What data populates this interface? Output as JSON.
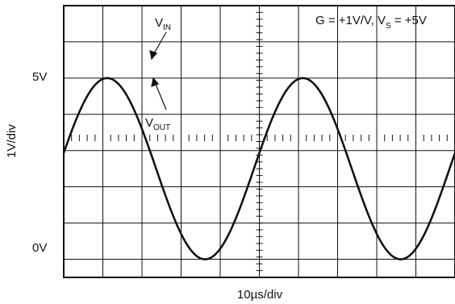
{
  "chart_data": {
    "type": "line",
    "title": "",
    "xlabel": "10µs/div",
    "ylabel": "1V/div",
    "ytick_labels": [
      {
        "text": "5V",
        "value": 5
      },
      {
        "text": "0V",
        "value": 0
      }
    ],
    "xlim": [
      0,
      100
    ],
    "ylim": [
      -0.5,
      7
    ],
    "grid": true,
    "annotation_main": "G = +1V/V, V",
    "annotation_sub": "S",
    "annotation_tail": " = +5V",
    "series": [
      {
        "name_main": "V",
        "name_sub": "IN",
        "amplitude": 2.5,
        "offset": 2.5,
        "period": 50,
        "phase_deg": 10,
        "clip_low": null,
        "clip_high": null
      },
      {
        "name_main": "V",
        "name_sub": "OUT",
        "amplitude": 2.5,
        "offset": 2.5,
        "period": 50,
        "phase_deg": 10,
        "clip_low": 0,
        "clip_high": 5
      }
    ]
  }
}
